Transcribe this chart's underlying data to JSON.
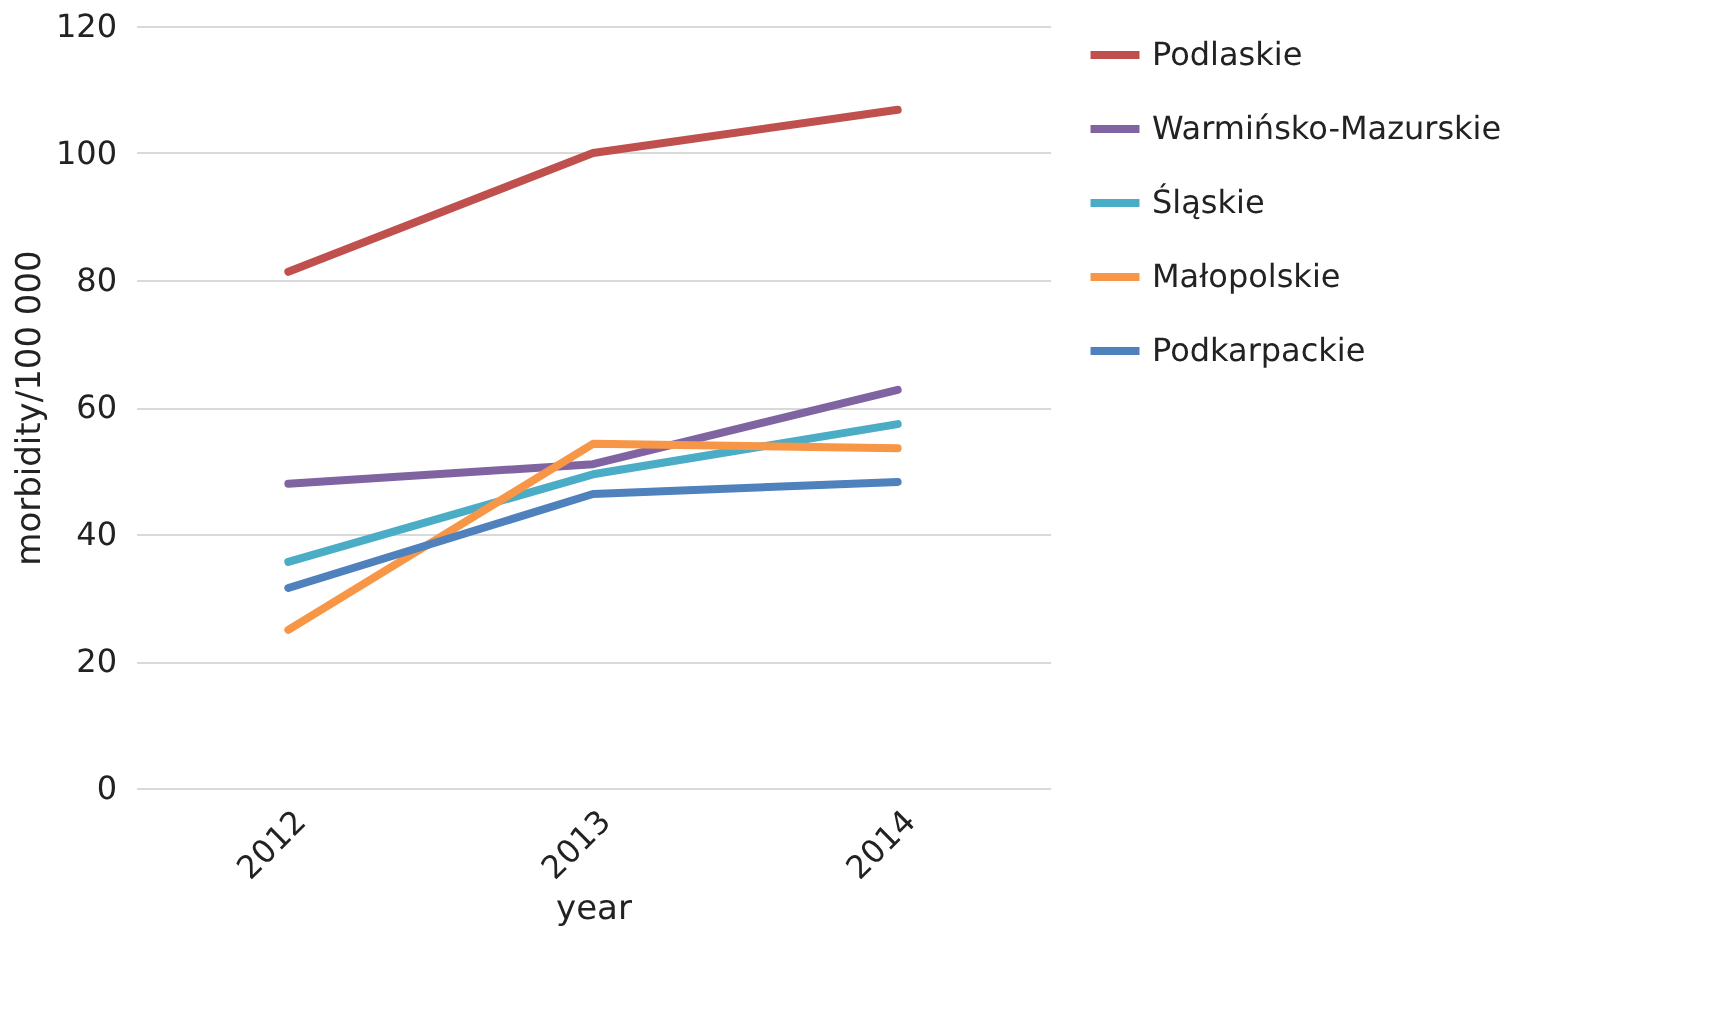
{
  "chart_data": {
    "type": "line",
    "xlabel": "year",
    "ylabel": "morbidity/100 000",
    "categories": [
      "2012",
      "2013",
      "2014"
    ],
    "series": [
      {
        "name": "Podlaskie",
        "color": "#c0504d",
        "values": [
          81.3,
          100,
          106.8
        ]
      },
      {
        "name": "Warmińsko-Mazurskie",
        "color": "#8064a2",
        "values": [
          47.9,
          51,
          62.7
        ]
      },
      {
        "name": "Śląskie",
        "color": "#4bacc6",
        "values": [
          35.6,
          49.4,
          57.3
        ]
      },
      {
        "name": "Małopolskie",
        "color": "#f79646",
        "values": [
          24.9,
          54.2,
          53.5
        ]
      },
      {
        "name": "Podkarpackie",
        "color": "#4f81bd",
        "values": [
          31.5,
          46.3,
          48.2
        ]
      }
    ],
    "ylim": [
      0,
      120
    ],
    "yticks": [
      0,
      20,
      40,
      60,
      80,
      100,
      120
    ],
    "grid": "y",
    "legend": "right",
    "marker": "none",
    "line_style": "solid"
  }
}
